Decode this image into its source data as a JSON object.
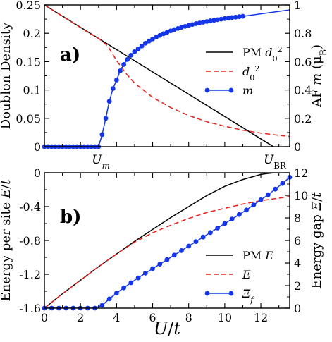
{
  "colors": {
    "pm": "#000000",
    "d0": "#e8211d",
    "m": "#1436e8"
  },
  "chart_data": [
    {
      "type": "line",
      "panel_label": "a)",
      "ylabel": "Doublon Density",
      "y2label": "AF m (μ_B)",
      "xlim": [
        0,
        13.6
      ],
      "ylim": [
        0,
        0.25
      ],
      "y2lim": [
        0,
        1
      ],
      "yticks": [
        "0",
        "0.05",
        "0.1",
        "0.15",
        "0.2",
        "0.25"
      ],
      "y2ticks": [
        "0",
        "0.2",
        "0.4",
        "0.6",
        "0.8",
        "1"
      ],
      "xtick_labels": [
        {
          "text": "U",
          "sub": "m",
          "x": 3.05
        },
        {
          "text": "U",
          "sub": "BR",
          "x": 12.7
        }
      ],
      "legend": {
        "placement": "center-right",
        "entries": [
          "PM d₀²",
          "d₀²",
          "m"
        ]
      },
      "series": [
        {
          "name": "PM d₀²",
          "axis": "left",
          "style": "solid",
          "color": "#000000",
          "x": [
            0,
            12.7
          ],
          "y": [
            0.25,
            0
          ]
        },
        {
          "name": "d₀²",
          "axis": "left",
          "style": "dashed",
          "color": "#e8211d",
          "x": [
            0,
            2.5,
            3.0,
            3.5,
            4.0,
            4.5,
            5.0,
            6.0,
            7.0,
            8.0,
            9.0,
            10.0,
            11.0,
            12.0,
            13.0,
            13.6
          ],
          "y": [
            0.25,
            0.2,
            0.191,
            0.178,
            0.152,
            0.13,
            0.112,
            0.087,
            0.069,
            0.055,
            0.044,
            0.036,
            0.029,
            0.024,
            0.02,
            0.018
          ]
        },
        {
          "name": "m",
          "axis": "right",
          "style": "solid-markers",
          "color": "#1436e8",
          "x": [
            0,
            0.2,
            0.4,
            0.6,
            0.8,
            1.0,
            1.2,
            1.4,
            1.6,
            1.8,
            2.0,
            2.2,
            2.4,
            2.6,
            2.8,
            3.0,
            3.2,
            3.4,
            3.6,
            3.8,
            4.0,
            4.2,
            4.4,
            4.6,
            4.8,
            5.0,
            5.2,
            5.4,
            5.6,
            5.8,
            6.0,
            6.2,
            6.4,
            6.6,
            6.8,
            7.0,
            7.2,
            7.4,
            7.6,
            7.8,
            8.0,
            8.2,
            8.4,
            8.6,
            8.8,
            9.0,
            9.2,
            9.4,
            9.6,
            9.8,
            10.0,
            10.2,
            10.4,
            10.6,
            10.8,
            11.0,
            13.6
          ],
          "y": [
            0,
            0,
            0,
            0,
            0,
            0,
            0,
            0,
            0,
            0,
            0,
            0,
            0,
            0,
            0,
            0,
            0.085,
            0.2,
            0.32,
            0.41,
            0.47,
            0.535,
            0.58,
            0.615,
            0.645,
            0.67,
            0.69,
            0.71,
            0.73,
            0.745,
            0.76,
            0.773,
            0.785,
            0.797,
            0.807,
            0.817,
            0.826,
            0.834,
            0.842,
            0.849,
            0.856,
            0.862,
            0.868,
            0.873,
            0.878,
            0.883,
            0.888,
            0.892,
            0.896,
            0.9,
            0.904,
            0.907,
            0.911,
            0.914,
            0.917,
            0.92,
            0.965
          ]
        }
      ]
    },
    {
      "type": "line",
      "panel_label": "b)",
      "ylabel": "Energy per site E/t",
      "y2label": "Energy gap Ξ/t",
      "xlabel": "U/t",
      "xlim": [
        0,
        13.6
      ],
      "ylim": [
        -1.6,
        0
      ],
      "y2lim": [
        0,
        12
      ],
      "xticks": [
        "0",
        "2",
        "4",
        "6",
        "8",
        "10",
        "12"
      ],
      "yticks": [
        "-1.6",
        "-1.2",
        "-0.8",
        "-0.4",
        "0"
      ],
      "y2ticks": [
        "0",
        "2",
        "4",
        "6",
        "8",
        "10",
        "12"
      ],
      "legend": {
        "placement": "bottom-right",
        "entries": [
          "PM E",
          "E",
          "Ξ_f"
        ]
      },
      "series": [
        {
          "name": "PM E",
          "axis": "left",
          "style": "solid",
          "color": "#000000",
          "x": [
            0,
            1,
            2,
            3,
            4,
            5,
            6,
            7,
            8,
            9,
            10,
            11,
            12,
            12.7,
            13.6
          ],
          "y": [
            -1.6,
            -1.43,
            -1.27,
            -1.11,
            -0.96,
            -0.81,
            -0.67,
            -0.53,
            -0.4,
            -0.27,
            -0.16,
            -0.08,
            -0.02,
            0,
            0
          ]
        },
        {
          "name": "E",
          "axis": "left",
          "style": "dashed",
          "color": "#e8211d",
          "x": [
            0,
            1,
            2,
            3,
            4,
            5,
            6,
            7,
            8,
            9,
            10,
            11,
            12,
            13,
            13.6
          ],
          "y": [
            -1.6,
            -1.43,
            -1.27,
            -1.11,
            -0.96,
            -0.82,
            -0.71,
            -0.62,
            -0.54,
            -0.47,
            -0.42,
            -0.37,
            -0.33,
            -0.3,
            -0.28
          ]
        },
        {
          "name": "Ξ_f",
          "axis": "right",
          "style": "solid-markers",
          "color": "#1436e8",
          "x": [
            0,
            0.4,
            0.8,
            1.2,
            1.6,
            2.0,
            2.4,
            2.8,
            3.2,
            3.6,
            4.0,
            4.4,
            4.8,
            5.2,
            5.6,
            6.0,
            6.4,
            6.8,
            7.2,
            7.6,
            8.0,
            8.4,
            8.8,
            9.2,
            9.6,
            10.0,
            10.4,
            10.8,
            11.2,
            11.6,
            12.0,
            12.4,
            12.8,
            13.2,
            13.6
          ],
          "y": [
            0,
            0,
            0,
            0,
            0,
            0,
            0,
            0,
            0.25,
            0.82,
            1.33,
            1.8,
            2.25,
            2.68,
            3.1,
            3.5,
            3.9,
            4.3,
            4.7,
            5.1,
            5.5,
            5.9,
            6.3,
            6.7,
            7.1,
            7.5,
            7.9,
            8.3,
            8.7,
            9.15,
            9.6,
            10.05,
            10.55,
            11.05,
            11.6
          ]
        }
      ]
    }
  ]
}
